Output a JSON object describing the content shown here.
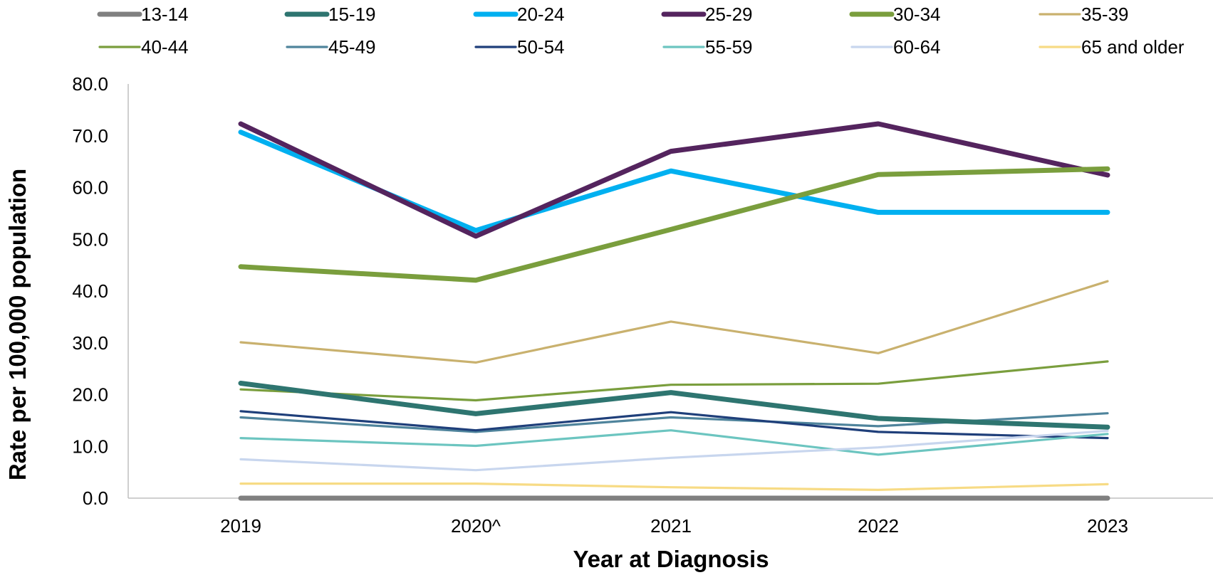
{
  "chart_data": {
    "type": "line",
    "title": "",
    "xlabel": "Year at Diagnosis",
    "ylabel": "Rate per 100,000 population",
    "ylim": [
      0,
      80
    ],
    "yticks": [
      "0.0",
      "10.0",
      "20.0",
      "30.0",
      "40.0",
      "50.0",
      "60.0",
      "70.0",
      "80.0"
    ],
    "categories": [
      "2019",
      "2020^",
      "2021",
      "2022",
      "2023"
    ],
    "grid": false,
    "legend_position": "top",
    "series": [
      {
        "name": "13-14",
        "color": "#808080",
        "width": "thick",
        "values": [
          0.0,
          0.0,
          0.0,
          0.0,
          0.0
        ]
      },
      {
        "name": "15-19",
        "color": "#2E7570",
        "width": "thick",
        "values": [
          22.2,
          16.3,
          20.4,
          15.4,
          13.7
        ]
      },
      {
        "name": "20-24",
        "color": "#00B0F0",
        "width": "thick",
        "values": [
          70.7,
          51.7,
          63.2,
          55.2,
          55.2
        ]
      },
      {
        "name": "25-29",
        "color": "#54245E",
        "width": "thick",
        "values": [
          72.3,
          50.6,
          67.0,
          72.3,
          62.4
        ]
      },
      {
        "name": "30-34",
        "color": "#7A9E3D",
        "width": "thick",
        "values": [
          44.7,
          42.1,
          51.9,
          62.5,
          63.6
        ]
      },
      {
        "name": "35-39",
        "color": "#C9B16E",
        "width": "thin",
        "values": [
          30.1,
          26.2,
          34.1,
          28.0,
          41.9
        ]
      },
      {
        "name": "40-44",
        "color": "#7A9E3D",
        "width": "thin",
        "values": [
          21.0,
          18.9,
          21.9,
          22.1,
          26.4
        ]
      },
      {
        "name": "45-49",
        "color": "#4F849C",
        "width": "thin",
        "values": [
          15.6,
          12.8,
          15.6,
          13.9,
          16.4
        ]
      },
      {
        "name": "50-54",
        "color": "#1F3F7A",
        "width": "thin",
        "values": [
          16.8,
          13.1,
          16.6,
          12.8,
          11.6
        ]
      },
      {
        "name": "55-59",
        "color": "#6CC5C0",
        "width": "thin",
        "values": [
          11.6,
          10.1,
          13.1,
          8.4,
          12.4
        ]
      },
      {
        "name": "60-64",
        "color": "#C8D6EE",
        "width": "thin",
        "values": [
          7.5,
          5.4,
          7.8,
          9.8,
          13.0
        ]
      },
      {
        "name": "65 and older",
        "color": "#F7DB85",
        "width": "thin",
        "values": [
          2.8,
          2.8,
          2.1,
          1.6,
          2.7
        ]
      }
    ]
  }
}
